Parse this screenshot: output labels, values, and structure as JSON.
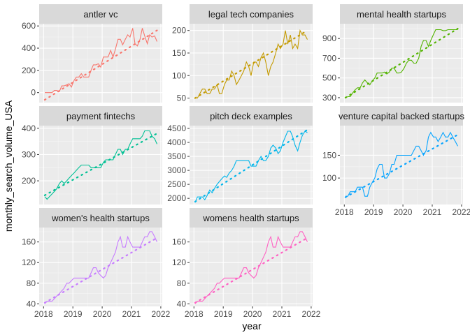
{
  "chart_data": {
    "type": "line",
    "xlabel": "year",
    "ylabel": "monthly_search_volume_USA",
    "x_ticks": [
      2018,
      2019,
      2020,
      2021,
      2022
    ],
    "xlim": [
      2017.85,
      2022.05
    ],
    "panels": [
      {
        "name": "antler vc",
        "color": "#F8766D",
        "ylim": [
          -90,
          620
        ],
        "y_ticks": [
          0,
          200,
          400,
          600
        ],
        "x": [
          2018.04,
          2018.12,
          2018.2,
          2018.29,
          2018.37,
          2018.45,
          2018.54,
          2018.62,
          2018.7,
          2018.79,
          2018.87,
          2018.95,
          2019.04,
          2019.12,
          2019.2,
          2019.29,
          2019.37,
          2019.45,
          2019.54,
          2019.62,
          2019.7,
          2019.79,
          2019.87,
          2019.95,
          2020.04,
          2020.12,
          2020.2,
          2020.29,
          2020.37,
          2020.45,
          2020.54,
          2020.62,
          2020.7,
          2020.79,
          2020.87,
          2020.95,
          2021.04,
          2021.12,
          2021.2,
          2021.29,
          2021.37,
          2021.45,
          2021.54,
          2021.62,
          2021.7,
          2021.79,
          2021.87
        ],
        "values": [
          0,
          0,
          0,
          0,
          20,
          20,
          10,
          60,
          60,
          70,
          80,
          50,
          110,
          140,
          140,
          170,
          140,
          140,
          140,
          200,
          250,
          250,
          260,
          230,
          320,
          320,
          320,
          380,
          320,
          390,
          480,
          480,
          430,
          480,
          520,
          500,
          580,
          440,
          420,
          480,
          580,
          510,
          440,
          520,
          500,
          510,
          460
        ],
        "trend": [
          -65,
          560
        ]
      },
      {
        "name": "legal tech companies",
        "color": "#C49A00",
        "ylim": [
          40,
          215
        ],
        "y_ticks": [
          50,
          100,
          150,
          200
        ],
        "x": [
          2018.04,
          2018.12,
          2018.2,
          2018.29,
          2018.37,
          2018.45,
          2018.54,
          2018.62,
          2018.7,
          2018.79,
          2018.87,
          2018.95,
          2019.04,
          2019.12,
          2019.2,
          2019.29,
          2019.37,
          2019.45,
          2019.54,
          2019.62,
          2019.7,
          2019.79,
          2019.87,
          2019.95,
          2020.04,
          2020.12,
          2020.2,
          2020.29,
          2020.37,
          2020.45,
          2020.54,
          2020.62,
          2020.7,
          2020.79,
          2020.87,
          2020.95,
          2021.04,
          2021.12,
          2021.2,
          2021.29,
          2021.37,
          2021.45,
          2021.54,
          2021.62,
          2021.7,
          2021.79,
          2021.87
        ],
        "values": [
          50,
          50,
          60,
          70,
          70,
          60,
          60,
          70,
          70,
          80,
          60,
          60,
          80,
          90,
          90,
          110,
          100,
          80,
          90,
          100,
          110,
          130,
          120,
          100,
          130,
          130,
          120,
          140,
          150,
          130,
          100,
          120,
          130,
          150,
          170,
          160,
          170,
          200,
          170,
          190,
          160,
          170,
          160,
          200,
          190,
          190,
          180
        ],
        "trend": [
          50,
          200
        ]
      },
      {
        "name": "mental health startups",
        "color": "#53B400",
        "ylim": [
          250,
          1050
        ],
        "y_ticks": [
          300,
          500,
          700,
          900
        ],
        "x": [
          2018.04,
          2018.12,
          2018.2,
          2018.29,
          2018.37,
          2018.45,
          2018.54,
          2018.62,
          2018.7,
          2018.79,
          2018.87,
          2018.95,
          2019.04,
          2019.12,
          2019.2,
          2019.29,
          2019.37,
          2019.45,
          2019.54,
          2019.62,
          2019.7,
          2019.79,
          2019.87,
          2019.95,
          2020.04,
          2020.12,
          2020.2,
          2020.29,
          2020.37,
          2020.45,
          2020.54,
          2020.62,
          2020.7,
          2020.79,
          2020.87,
          2020.95,
          2021.04,
          2021.12,
          2021.2,
          2021.29,
          2021.37,
          2021.45,
          2021.54,
          2021.62,
          2021.7,
          2021.79,
          2021.87
        ],
        "values": [
          300,
          310,
          310,
          350,
          380,
          400,
          400,
          450,
          480,
          450,
          430,
          470,
          500,
          550,
          550,
          550,
          560,
          540,
          560,
          600,
          600,
          550,
          550,
          560,
          600,
          650,
          680,
          680,
          650,
          650,
          700,
          820,
          880,
          880,
          820,
          880,
          940,
          990,
          990,
          990,
          980,
          980,
          990,
          990,
          990,
          990,
          990
        ],
        "trend": [
          300,
          1000
        ]
      },
      {
        "name": "payment fintechs",
        "color": "#00C094",
        "ylim": [
          110,
          410
        ],
        "y_ticks": [
          200,
          300,
          400
        ],
        "x": [
          2018.04,
          2018.12,
          2018.2,
          2018.29,
          2018.37,
          2018.45,
          2018.54,
          2018.62,
          2018.7,
          2018.79,
          2018.87,
          2018.95,
          2019.04,
          2019.12,
          2019.2,
          2019.29,
          2019.37,
          2019.45,
          2019.54,
          2019.62,
          2019.7,
          2019.79,
          2019.87,
          2019.95,
          2020.04,
          2020.12,
          2020.2,
          2020.29,
          2020.37,
          2020.45,
          2020.54,
          2020.62,
          2020.7,
          2020.79,
          2020.87,
          2020.95,
          2021.04,
          2021.12,
          2021.2,
          2021.29,
          2021.37,
          2021.45,
          2021.54,
          2021.62,
          2021.7,
          2021.79,
          2021.87
        ],
        "values": [
          140,
          130,
          140,
          150,
          160,
          170,
          190,
          200,
          190,
          200,
          210,
          220,
          230,
          240,
          250,
          260,
          260,
          260,
          260,
          250,
          250,
          250,
          250,
          250,
          270,
          280,
          280,
          280,
          280,
          300,
          320,
          320,
          300,
          320,
          320,
          340,
          360,
          360,
          360,
          360,
          370,
          390,
          390,
          390,
          370,
          360,
          340
        ],
        "trend": [
          145,
          380
        ]
      },
      {
        "name": "pitch deck examples",
        "color": "#00B6EB",
        "ylim": [
          1780,
          4600
        ],
        "y_ticks": [
          2000,
          2500,
          3000,
          3500,
          4000,
          4500
        ],
        "x": [
          2018.04,
          2018.12,
          2018.2,
          2018.29,
          2018.37,
          2018.45,
          2018.54,
          2018.62,
          2018.7,
          2018.79,
          2018.87,
          2018.95,
          2019.04,
          2019.12,
          2019.2,
          2019.29,
          2019.37,
          2019.45,
          2019.54,
          2019.62,
          2019.7,
          2019.79,
          2019.87,
          2019.95,
          2020.04,
          2020.12,
          2020.2,
          2020.29,
          2020.37,
          2020.45,
          2020.54,
          2020.62,
          2020.7,
          2020.79,
          2020.87,
          2020.95,
          2021.04,
          2021.12,
          2021.2,
          2021.29,
          2021.37,
          2021.45,
          2021.54,
          2021.62,
          2021.7,
          2021.79,
          2021.87
        ],
        "values": [
          1850,
          2050,
          2050,
          2050,
          1950,
          2100,
          2300,
          2200,
          2350,
          2500,
          2600,
          2700,
          2800,
          2750,
          2900,
          3000,
          3150,
          3350,
          3350,
          3350,
          3350,
          3350,
          3350,
          3150,
          3150,
          3150,
          3350,
          3500,
          3350,
          3350,
          3500,
          3800,
          3900,
          3800,
          3600,
          3700,
          4000,
          4200,
          4400,
          4400,
          4200,
          3900,
          3700,
          4000,
          4250,
          4400,
          4350
        ],
        "trend": [
          1880,
          4450
        ]
      },
      {
        "name": "venture capital backed startups",
        "color": "#A58AFF",
        "line_color": "#06A4FF",
        "ylim": [
          42,
          215
        ],
        "y_ticks": [
          100,
          150
        ],
        "x": [
          2018.04,
          2018.12,
          2018.2,
          2018.29,
          2018.37,
          2018.45,
          2018.54,
          2018.62,
          2018.7,
          2018.79,
          2018.87,
          2018.95,
          2019.04,
          2019.12,
          2019.2,
          2019.29,
          2019.37,
          2019.45,
          2019.54,
          2019.62,
          2019.7,
          2019.79,
          2019.87,
          2019.95,
          2020.04,
          2020.12,
          2020.2,
          2020.29,
          2020.37,
          2020.45,
          2020.54,
          2020.62,
          2020.7,
          2020.79,
          2020.87,
          2020.95,
          2021.04,
          2021.12,
          2021.2,
          2021.29,
          2021.37,
          2021.45,
          2021.54,
          2021.62,
          2021.7,
          2021.79,
          2021.87
        ],
        "values": [
          60,
          60,
          70,
          70,
          70,
          80,
          80,
          80,
          60,
          60,
          80,
          90,
          100,
          120,
          130,
          130,
          100,
          100,
          110,
          130,
          130,
          150,
          150,
          150,
          150,
          150,
          150,
          150,
          160,
          170,
          170,
          160,
          150,
          160,
          190,
          200,
          190,
          190,
          180,
          190,
          200,
          190,
          190,
          200,
          190,
          180,
          170
        ],
        "trend": [
          58,
          195
        ]
      },
      {
        "name": "women's health startups",
        "color": "#FB61D7",
        "line_color": "#C77CFF",
        "ylim": [
          35,
          188
        ],
        "y_ticks": [
          40,
          80,
          120,
          160
        ],
        "x": [
          2018.04,
          2018.12,
          2018.2,
          2018.29,
          2018.37,
          2018.45,
          2018.54,
          2018.62,
          2018.7,
          2018.79,
          2018.87,
          2018.95,
          2019.04,
          2019.12,
          2019.2,
          2019.29,
          2019.37,
          2019.45,
          2019.54,
          2019.62,
          2019.7,
          2019.79,
          2019.87,
          2019.95,
          2020.04,
          2020.12,
          2020.2,
          2020.29,
          2020.37,
          2020.45,
          2020.54,
          2020.62,
          2020.7,
          2020.79,
          2020.87,
          2020.95,
          2021.04,
          2021.12,
          2021.2,
          2021.29,
          2021.37,
          2021.45,
          2021.54,
          2021.62,
          2021.7,
          2021.79,
          2021.87
        ],
        "values": [
          40,
          45,
          45,
          45,
          50,
          55,
          60,
          65,
          70,
          80,
          80,
          85,
          90,
          90,
          90,
          90,
          90,
          90,
          90,
          100,
          110,
          110,
          100,
          95,
          90,
          95,
          110,
          120,
          130,
          140,
          160,
          170,
          150,
          150,
          170,
          160,
          150,
          150,
          150,
          150,
          160,
          170,
          170,
          180,
          180,
          170,
          160
        ],
        "trend": [
          42,
          168
        ]
      },
      {
        "name": "womens health startups",
        "color": "#FF61C3",
        "ylim": [
          35,
          188
        ],
        "y_ticks": [
          40,
          80,
          120,
          160
        ],
        "x": [
          2018.04,
          2018.12,
          2018.2,
          2018.29,
          2018.37,
          2018.45,
          2018.54,
          2018.62,
          2018.7,
          2018.79,
          2018.87,
          2018.95,
          2019.04,
          2019.12,
          2019.2,
          2019.29,
          2019.37,
          2019.45,
          2019.54,
          2019.62,
          2019.7,
          2019.79,
          2019.87,
          2019.95,
          2020.04,
          2020.12,
          2020.2,
          2020.29,
          2020.37,
          2020.45,
          2020.54,
          2020.62,
          2020.7,
          2020.79,
          2020.87,
          2020.95,
          2021.04,
          2021.12,
          2021.2,
          2021.29,
          2021.37,
          2021.45,
          2021.54,
          2021.62,
          2021.7,
          2021.79,
          2021.87
        ],
        "values": [
          40,
          45,
          45,
          45,
          50,
          55,
          60,
          65,
          70,
          80,
          80,
          85,
          90,
          90,
          90,
          90,
          90,
          90,
          90,
          100,
          110,
          110,
          100,
          95,
          90,
          95,
          110,
          120,
          130,
          140,
          160,
          170,
          150,
          150,
          170,
          160,
          150,
          150,
          150,
          150,
          160,
          170,
          170,
          180,
          180,
          170,
          160
        ],
        "trend": [
          42,
          168
        ]
      }
    ]
  }
}
